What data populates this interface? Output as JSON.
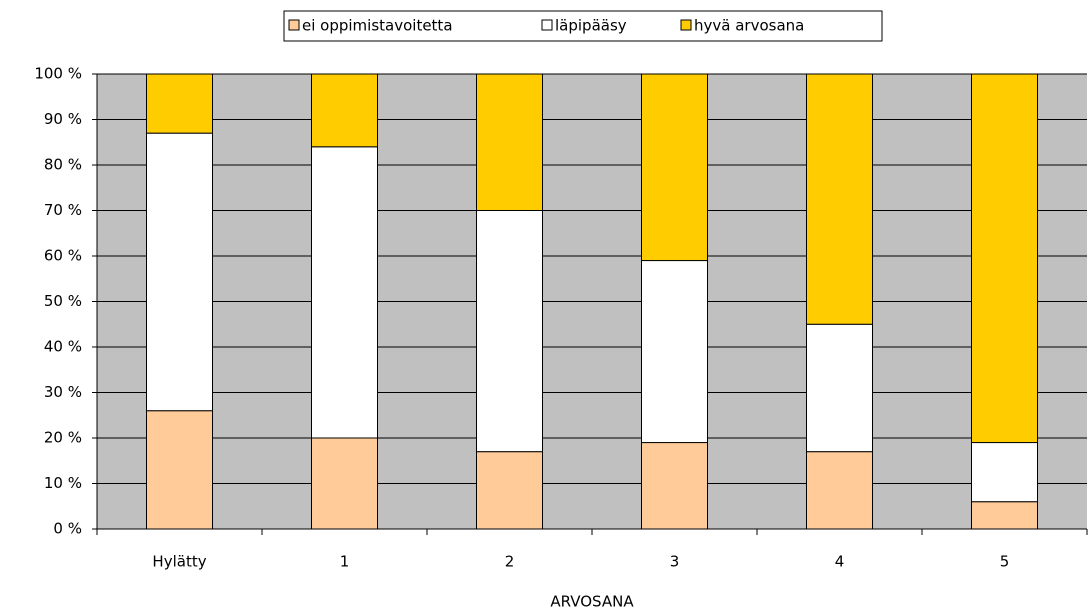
{
  "chart_data": {
    "type": "bar",
    "stacked": true,
    "x_label": "ARVOSANA",
    "categories": [
      "Hylätty",
      "1",
      "2",
      "3",
      "4",
      "5"
    ],
    "series": [
      {
        "name": "ei oppimistavoitetta",
        "color": "#ffcc99",
        "values": [
          26,
          20,
          17,
          19,
          17,
          6
        ]
      },
      {
        "name": "läpipääsy",
        "color": "#ffffff",
        "values": [
          61,
          64,
          53,
          40,
          28,
          13
        ]
      },
      {
        "name": "hyvä arvosana",
        "color": "#ffcc00",
        "values": [
          13,
          16,
          30,
          41,
          55,
          81
        ]
      }
    ],
    "ylim": [
      0,
      100
    ],
    "yticks": [
      {
        "value": 0,
        "label": "0 %"
      },
      {
        "value": 10,
        "label": "10 %"
      },
      {
        "value": 20,
        "label": "20 %"
      },
      {
        "value": 30,
        "label": "30 %"
      },
      {
        "value": 40,
        "label": "40 %"
      },
      {
        "value": 50,
        "label": "50 %"
      },
      {
        "value": 60,
        "label": "60 %"
      },
      {
        "value": 70,
        "label": "70 %"
      },
      {
        "value": 80,
        "label": "80 %"
      },
      {
        "value": 90,
        "label": "90 %"
      },
      {
        "value": 100,
        "label": "100 %"
      }
    ],
    "grid": true,
    "legend": "top",
    "plot_background": "#c0c0c0"
  }
}
